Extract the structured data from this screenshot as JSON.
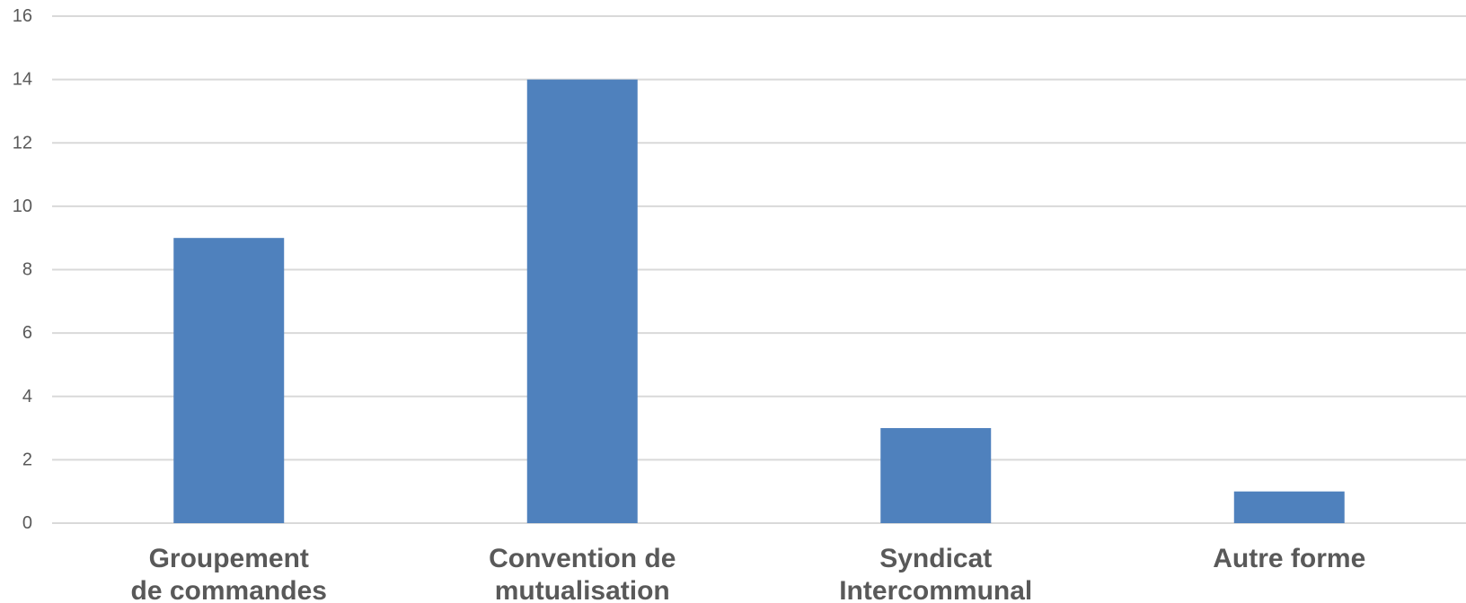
{
  "chart_data": {
    "type": "bar",
    "title": "",
    "xlabel": "",
    "ylabel": "",
    "categories": [
      [
        "Groupement",
        "de commandes"
      ],
      [
        "Convention de",
        "mutualisation"
      ],
      [
        "Syndicat",
        "Intercommunal"
      ],
      [
        "Autre forme"
      ]
    ],
    "values": [
      9,
      14,
      3,
      1
    ],
    "ylim": [
      0,
      16
    ],
    "yticks": [
      "0",
      "2",
      "4",
      "6",
      "8",
      "10",
      "12",
      "14",
      "16"
    ],
    "grid": true,
    "legend": "none",
    "colors": {
      "bar": "#4f81bd",
      "gridline": "#d9d9d9",
      "text": "#595959"
    }
  }
}
